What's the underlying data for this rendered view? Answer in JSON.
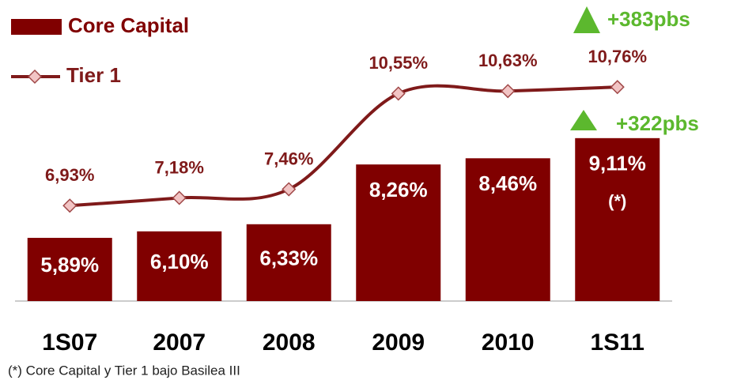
{
  "chart_data": {
    "type": "bar",
    "categories": [
      "1S07",
      "2007",
      "2008",
      "2009",
      "2010",
      "1S11"
    ],
    "ylim": [
      3.85,
      12.55
    ],
    "legend": "top-left",
    "series": [
      {
        "name": "Core Capital",
        "type": "bar",
        "color": "#800000",
        "values": [
          5.89,
          6.1,
          6.33,
          8.26,
          8.46,
          9.11
        ],
        "value_labels": [
          "5,89%",
          "6,10%",
          "6,33%",
          "8,26%",
          "8,46%",
          "9,11%"
        ]
      },
      {
        "name": "Tier 1",
        "type": "line",
        "color": "#7f1a1a",
        "marker_color": "#f2c4c4",
        "values": [
          6.93,
          7.18,
          7.46,
          10.55,
          10.63,
          10.76
        ],
        "value_labels": [
          "6,93%",
          "7,18%",
          "7,46%",
          "10,55%",
          "10,63%",
          "10,76%"
        ]
      }
    ],
    "annotations": [
      "+383pbs",
      "+322pbs",
      "(*)"
    ],
    "annotation_color": "#5cb82e",
    "footnote": "(*) Core Capital y Tier 1 bajo Basilea III"
  }
}
